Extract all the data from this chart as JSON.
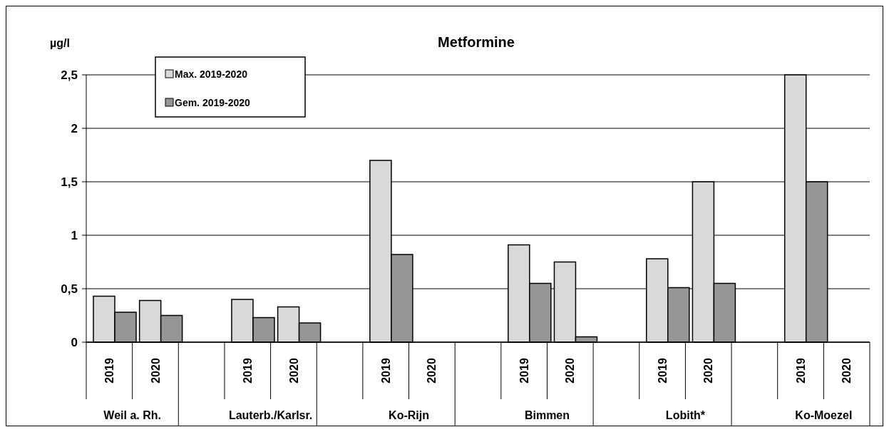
{
  "chart_data": {
    "type": "bar",
    "title": "Metformine",
    "ylabel": "µg/l",
    "categories": [
      "2019",
      "2020",
      null,
      "2019",
      "2020",
      null,
      "2019",
      "2020",
      null,
      "2019",
      "2020",
      null,
      "2019",
      "2020",
      null,
      "2019",
      "2020"
    ],
    "series": [
      {
        "name": "Max. 2019-2020",
        "color": "#d9d9d9",
        "values": [
          0.43,
          0.39,
          null,
          0.4,
          0.33,
          null,
          1.7,
          null,
          null,
          0.91,
          0.75,
          null,
          0.78,
          1.5,
          null,
          2.5,
          null
        ]
      },
      {
        "name": "Gem. 2019-2020",
        "color": "#969696",
        "values": [
          0.28,
          0.25,
          null,
          0.23,
          0.18,
          null,
          0.82,
          null,
          null,
          0.55,
          0.05,
          null,
          0.51,
          0.55,
          null,
          1.5,
          null
        ]
      }
    ],
    "annotations": [
      "Weil a. Rh.",
      "Lauterb./Karlsr.",
      "Ko-Rijn",
      "Bimmen",
      "Lobith*",
      "Ko-Moezel"
    ],
    "ylim": [
      0,
      2.5
    ],
    "yticks": [
      0,
      {
        "value": 0.5,
        "label": "0,5"
      },
      1,
      {
        "value": 1.5,
        "label": "1,5"
      },
      2,
      {
        "value": 2.5,
        "label": "2,5"
      }
    ],
    "grid": "y",
    "legend": "top left"
  }
}
